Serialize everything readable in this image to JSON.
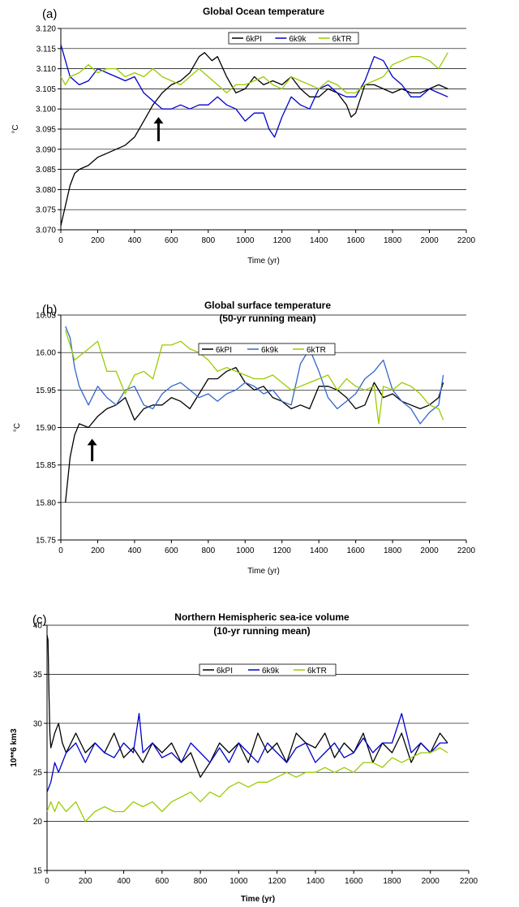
{
  "chart_data": [
    {
      "type": "line",
      "panel_label": "(a)",
      "title": "Global Ocean temperature",
      "subtitle": "",
      "xlabel": "Time (yr)",
      "ylabel": "°C",
      "xlim": [
        0,
        2200
      ],
      "ylim": [
        3.07,
        3.12
      ],
      "xticks": [
        0,
        200,
        400,
        600,
        800,
        1000,
        1200,
        1400,
        1600,
        1800,
        2000,
        2200
      ],
      "yticks": [
        3.07,
        3.075,
        3.08,
        3.085,
        3.09,
        3.095,
        3.1,
        3.105,
        3.11,
        3.115,
        3.12
      ],
      "ytick_labels": [
        "3.070",
        "3.075",
        "3.080",
        "3.085",
        "3.090",
        "3.095",
        "3.100",
        "3.105",
        "3.110",
        "3.115",
        "3.120"
      ],
      "grid": "horizontal",
      "legend": "top-right",
      "annotation": {
        "type": "arrow-up",
        "x": 530,
        "y_tip": 3.098,
        "y_base": 3.092
      },
      "series": [
        {
          "name": "6kPI",
          "color": "#000000",
          "x": [
            0,
            25,
            50,
            75,
            100,
            150,
            200,
            250,
            300,
            350,
            400,
            450,
            500,
            550,
            600,
            650,
            700,
            750,
            780,
            820,
            850,
            900,
            950,
            1000,
            1050,
            1100,
            1150,
            1200,
            1250,
            1300,
            1350,
            1400,
            1450,
            1500,
            1550,
            1575,
            1600,
            1650,
            1700,
            1750,
            1800,
            1850,
            1900,
            1950,
            2000,
            2050,
            2100
          ],
          "values": [
            3.071,
            3.076,
            3.081,
            3.084,
            3.085,
            3.086,
            3.088,
            3.089,
            3.09,
            3.091,
            3.093,
            3.097,
            3.101,
            3.104,
            3.106,
            3.107,
            3.109,
            3.113,
            3.114,
            3.112,
            3.113,
            3.108,
            3.104,
            3.105,
            3.108,
            3.106,
            3.107,
            3.106,
            3.108,
            3.105,
            3.103,
            3.103,
            3.105,
            3.104,
            3.101,
            3.098,
            3.099,
            3.106,
            3.106,
            3.105,
            3.104,
            3.105,
            3.104,
            3.104,
            3.105,
            3.106,
            3.105
          ]
        },
        {
          "name": "6k9k",
          "color": "#0000cc",
          "x": [
            0,
            25,
            50,
            100,
            150,
            200,
            250,
            300,
            350,
            400,
            450,
            500,
            550,
            600,
            650,
            700,
            750,
            800,
            850,
            900,
            950,
            1000,
            1050,
            1100,
            1130,
            1160,
            1200,
            1250,
            1300,
            1350,
            1400,
            1450,
            1500,
            1550,
            1600,
            1650,
            1700,
            1750,
            1800,
            1850,
            1900,
            1950,
            2000,
            2050,
            2100
          ],
          "values": [
            3.116,
            3.112,
            3.108,
            3.106,
            3.107,
            3.11,
            3.109,
            3.108,
            3.107,
            3.108,
            3.104,
            3.102,
            3.1,
            3.1,
            3.101,
            3.1,
            3.101,
            3.101,
            3.103,
            3.101,
            3.1,
            3.097,
            3.099,
            3.099,
            3.095,
            3.093,
            3.098,
            3.103,
            3.101,
            3.1,
            3.105,
            3.106,
            3.104,
            3.103,
            3.103,
            3.107,
            3.113,
            3.112,
            3.108,
            3.106,
            3.103,
            3.103,
            3.105,
            3.104,
            3.103
          ]
        },
        {
          "name": "6kTR",
          "color": "#99cc00",
          "x": [
            0,
            25,
            50,
            100,
            150,
            200,
            250,
            300,
            350,
            400,
            450,
            500,
            550,
            600,
            650,
            700,
            750,
            800,
            850,
            900,
            950,
            1000,
            1050,
            1100,
            1150,
            1200,
            1250,
            1300,
            1350,
            1400,
            1450,
            1500,
            1550,
            1600,
            1650,
            1700,
            1750,
            1800,
            1850,
            1900,
            1950,
            2000,
            2050,
            2100
          ],
          "values": [
            3.108,
            3.106,
            3.108,
            3.109,
            3.111,
            3.109,
            3.11,
            3.11,
            3.108,
            3.109,
            3.108,
            3.11,
            3.108,
            3.107,
            3.106,
            3.108,
            3.11,
            3.108,
            3.106,
            3.104,
            3.106,
            3.106,
            3.107,
            3.108,
            3.106,
            3.105,
            3.108,
            3.107,
            3.106,
            3.105,
            3.107,
            3.106,
            3.104,
            3.104,
            3.106,
            3.107,
            3.108,
            3.111,
            3.112,
            3.113,
            3.113,
            3.112,
            3.11,
            3.114
          ]
        }
      ]
    },
    {
      "type": "line",
      "panel_label": "(b)",
      "title": "Global surface temperature",
      "subtitle": "(50-yr running mean)",
      "xlabel": "Time (yr)",
      "ylabel": "°C",
      "xlim": [
        0,
        2200
      ],
      "ylim": [
        15.75,
        16.05
      ],
      "xticks": [
        0,
        200,
        400,
        600,
        800,
        1000,
        1200,
        1400,
        1600,
        1800,
        2000,
        2200
      ],
      "yticks": [
        15.75,
        15.8,
        15.85,
        15.9,
        15.95,
        16.0,
        16.05
      ],
      "ytick_labels": [
        "15.75",
        "15.80",
        "15.85",
        "15.90",
        "15.95",
        "16.00",
        "16.05"
      ],
      "grid": "horizontal",
      "legend": "top-center",
      "annotation": {
        "type": "arrow-up",
        "x": 170,
        "y_tip": 15.885,
        "y_base": 15.855
      },
      "series": [
        {
          "name": "6kPI",
          "color": "#000000",
          "x": [
            25,
            50,
            75,
            100,
            150,
            200,
            250,
            300,
            350,
            400,
            450,
            500,
            550,
            600,
            650,
            700,
            750,
            800,
            850,
            900,
            950,
            1000,
            1050,
            1100,
            1150,
            1200,
            1250,
            1300,
            1350,
            1400,
            1450,
            1500,
            1550,
            1600,
            1650,
            1700,
            1750,
            1800,
            1850,
            1900,
            1950,
            2000,
            2050,
            2075
          ],
          "values": [
            15.8,
            15.86,
            15.89,
            15.905,
            15.9,
            15.915,
            15.925,
            15.93,
            15.94,
            15.91,
            15.925,
            15.93,
            15.93,
            15.94,
            15.935,
            15.925,
            15.945,
            15.965,
            15.965,
            15.975,
            15.98,
            15.96,
            15.95,
            15.955,
            15.94,
            15.935,
            15.925,
            15.93,
            15.925,
            15.955,
            15.955,
            15.95,
            15.94,
            15.925,
            15.93,
            15.96,
            15.94,
            15.945,
            15.935,
            15.93,
            15.925,
            15.93,
            15.94,
            15.96
          ]
        },
        {
          "name": "6k9k",
          "color": "#3366cc",
          "x": [
            25,
            50,
            75,
            100,
            150,
            200,
            250,
            300,
            350,
            400,
            450,
            500,
            550,
            600,
            650,
            700,
            750,
            800,
            850,
            900,
            950,
            1000,
            1050,
            1100,
            1150,
            1200,
            1250,
            1300,
            1350,
            1400,
            1450,
            1500,
            1550,
            1600,
            1650,
            1700,
            1750,
            1800,
            1850,
            1900,
            1950,
            2000,
            2050,
            2075
          ],
          "values": [
            16.035,
            16.02,
            15.98,
            15.955,
            15.93,
            15.955,
            15.94,
            15.93,
            15.95,
            15.955,
            15.93,
            15.925,
            15.945,
            15.955,
            15.96,
            15.95,
            15.94,
            15.945,
            15.935,
            15.945,
            15.95,
            15.96,
            15.955,
            15.945,
            15.95,
            15.935,
            15.93,
            15.985,
            16.005,
            15.975,
            15.94,
            15.925,
            15.935,
            15.945,
            15.965,
            15.975,
            15.99,
            15.95,
            15.935,
            15.925,
            15.905,
            15.92,
            15.93,
            15.97
          ]
        },
        {
          "name": "6kTR",
          "color": "#99cc00",
          "x": [
            25,
            50,
            75,
            100,
            150,
            200,
            250,
            300,
            350,
            400,
            450,
            500,
            550,
            600,
            650,
            700,
            750,
            800,
            850,
            900,
            950,
            1000,
            1050,
            1100,
            1150,
            1200,
            1250,
            1300,
            1350,
            1400,
            1450,
            1500,
            1550,
            1600,
            1650,
            1700,
            1725,
            1750,
            1800,
            1850,
            1900,
            1950,
            2000,
            2050,
            2075
          ],
          "values": [
            16.03,
            16.01,
            15.99,
            15.995,
            16.005,
            16.015,
            15.975,
            15.975,
            15.945,
            15.97,
            15.975,
            15.965,
            16.01,
            16.01,
            16.015,
            16.005,
            16.0,
            15.99,
            15.975,
            15.98,
            15.975,
            15.97,
            15.965,
            15.965,
            15.97,
            15.96,
            15.95,
            15.955,
            15.96,
            15.965,
            15.97,
            15.95,
            15.965,
            15.955,
            15.95,
            15.955,
            15.905,
            15.955,
            15.95,
            15.96,
            15.955,
            15.945,
            15.93,
            15.925,
            15.91
          ]
        }
      ]
    },
    {
      "type": "line",
      "panel_label": "(c)",
      "title": "Northern Hemispheric sea-ice volume",
      "subtitle": "(10-yr running mean)",
      "xlabel": "Time (yr)",
      "ylabel": "10**6 km3",
      "xlim": [
        0,
        2200
      ],
      "ylim": [
        15,
        40
      ],
      "xticks": [
        0,
        200,
        400,
        600,
        800,
        1000,
        1200,
        1400,
        1600,
        1800,
        2000,
        2200
      ],
      "yticks": [
        15,
        20,
        25,
        30,
        35,
        40
      ],
      "ytick_labels": [
        "15",
        "20",
        "25",
        "30",
        "35",
        "40"
      ],
      "grid": "horizontal",
      "legend": "top-center",
      "series": [
        {
          "name": "6kPI",
          "color": "#000000",
          "x": [
            0,
            5,
            10,
            15,
            20,
            40,
            60,
            80,
            100,
            150,
            200,
            250,
            300,
            350,
            400,
            450,
            500,
            550,
            600,
            650,
            700,
            750,
            800,
            850,
            900,
            950,
            1000,
            1050,
            1100,
            1150,
            1200,
            1250,
            1300,
            1350,
            1400,
            1450,
            1500,
            1550,
            1600,
            1650,
            1700,
            1750,
            1800,
            1850,
            1900,
            1950,
            2000,
            2050,
            2090
          ],
          "values": [
            39,
            38.5,
            33,
            29,
            27.5,
            29,
            30,
            28,
            27,
            29,
            27,
            28,
            27,
            29,
            26.5,
            27.5,
            26,
            28,
            27,
            28,
            26,
            27,
            24.5,
            26,
            28,
            27,
            28,
            26,
            29,
            27,
            28,
            26,
            29,
            28,
            27.5,
            29,
            26.5,
            28,
            27,
            29,
            26,
            28,
            27,
            29,
            26,
            28,
            27,
            29,
            28
          ]
        },
        {
          "name": "6k9k",
          "color": "#0000cc",
          "x": [
            0,
            20,
            40,
            60,
            100,
            150,
            200,
            250,
            300,
            350,
            400,
            450,
            480,
            500,
            550,
            600,
            650,
            700,
            750,
            800,
            850,
            900,
            950,
            1000,
            1050,
            1100,
            1150,
            1200,
            1250,
            1300,
            1350,
            1400,
            1450,
            1500,
            1550,
            1600,
            1650,
            1700,
            1750,
            1800,
            1850,
            1900,
            1950,
            2000,
            2050,
            2090
          ],
          "values": [
            23,
            24,
            26,
            25,
            27,
            28,
            26,
            28,
            27,
            26.5,
            28,
            27,
            31,
            27,
            28,
            26.5,
            27,
            26,
            28,
            27,
            26,
            27.5,
            26,
            28,
            27,
            26,
            28,
            27,
            26,
            27.5,
            28,
            26,
            27,
            28,
            26.5,
            27,
            28.5,
            27,
            28,
            28,
            31,
            27,
            28,
            27,
            28,
            28
          ]
        },
        {
          "name": "6kTR",
          "color": "#99cc00",
          "x": [
            0,
            20,
            40,
            60,
            100,
            150,
            200,
            250,
            300,
            350,
            400,
            450,
            500,
            550,
            600,
            650,
            700,
            750,
            800,
            850,
            900,
            950,
            1000,
            1050,
            1100,
            1150,
            1200,
            1250,
            1300,
            1350,
            1400,
            1450,
            1500,
            1550,
            1600,
            1650,
            1700,
            1750,
            1800,
            1850,
            1900,
            1950,
            2000,
            2050,
            2090
          ],
          "values": [
            21,
            22,
            21,
            22,
            21,
            22,
            20,
            21,
            21.5,
            21,
            21,
            22,
            21.5,
            22,
            21,
            22,
            22.5,
            23,
            22,
            23,
            22.5,
            23.5,
            24,
            23.5,
            24,
            24,
            24.5,
            25,
            24.5,
            25,
            25,
            25.5,
            25,
            25.5,
            25,
            26,
            26,
            25.5,
            26.5,
            26,
            26.5,
            27,
            27,
            27.5,
            27
          ]
        }
      ]
    }
  ]
}
